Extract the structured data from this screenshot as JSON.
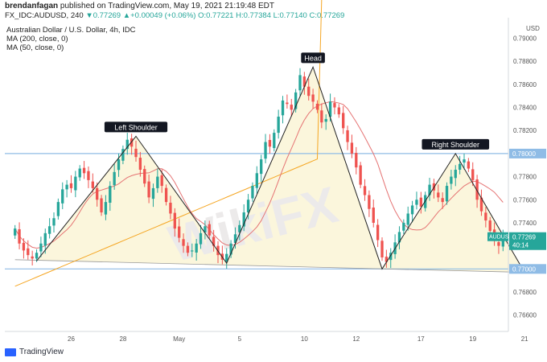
{
  "header": {
    "author": "brendanfagan",
    "published": "published on TradingView.com, May 19, 2021 21:19:48 EDT",
    "symbol_line": "FX_IDC:AUDUSD, 240",
    "change": "▼0.77269 ▲+0.00049 (+0.06%)",
    "open": "O:0.77221",
    "high": "H:0.77384",
    "low": "L:0.77140",
    "close": "C:0.77269"
  },
  "legend": {
    "title": "Australian Dollar / U.S. Dollar, 4h, IDC",
    "ma200": "MA (200, close, 0)",
    "ma50": "MA (50, close, 0)"
  },
  "footer": {
    "brand": "TradingView"
  },
  "watermark": "WikiFX",
  "colors": {
    "up": "#26a69a",
    "down": "#ef5350",
    "ma200": "#f5a623",
    "ma50": "#e57373",
    "neckline": "#8fbce6",
    "shade": "#fbf6dc",
    "pattern": "#222222"
  },
  "chart_data": {
    "type": "candlestick",
    "currency": "USD",
    "price_label": "AUDUSD",
    "last_price": 0.77269,
    "countdown": "40:14",
    "ylim": [
      0.765,
      0.7915
    ],
    "y_ticks": [
      "0.79000",
      "0.78800",
      "0.78600",
      "0.78400",
      "0.78200",
      "0.78000",
      "0.77800",
      "0.77600",
      "0.77400",
      "0.77200",
      "0.77000",
      "0.76800",
      "0.76600"
    ],
    "x_ticks": [
      {
        "label": "26",
        "index": 13
      },
      {
        "label": "28",
        "index": 25
      },
      {
        "label": "May",
        "index": 38
      },
      {
        "label": "5",
        "index": 52
      },
      {
        "label": "10",
        "index": 67
      },
      {
        "label": "12",
        "index": 79
      },
      {
        "label": "17",
        "index": 94
      },
      {
        "label": "19",
        "index": 106
      },
      {
        "label": "21",
        "index": 118
      }
    ],
    "horizontal_levels": [
      {
        "price": 0.78,
        "label": "0.78000"
      },
      {
        "price": 0.77,
        "label": "0.77000"
      }
    ],
    "annotations": [
      {
        "text": "Left Shoulder",
        "index": 28,
        "price": 0.7815
      },
      {
        "text": "Head",
        "index": 69,
        "price": 0.7875
      },
      {
        "text": "Right Shoulder",
        "index": 102,
        "price": 0.78
      }
    ],
    "pattern_path": [
      {
        "index": 5,
        "price": 0.7707
      },
      {
        "index": 28,
        "price": 0.7815
      },
      {
        "index": 49,
        "price": 0.7705
      },
      {
        "index": 69,
        "price": 0.7875
      },
      {
        "index": 85,
        "price": 0.77
      },
      {
        "index": 102,
        "price": 0.78
      },
      {
        "index": 118,
        "price": 0.7697
      }
    ],
    "neckline": [
      {
        "index": 0,
        "price": 0.7708
      },
      {
        "index": 118,
        "price": 0.7697
      }
    ],
    "closes": [
      0.7735,
      0.7722,
      0.7716,
      0.7712,
      0.7709,
      0.7714,
      0.7722,
      0.7731,
      0.7737,
      0.7744,
      0.7758,
      0.7769,
      0.7773,
      0.777,
      0.778,
      0.7787,
      0.7783,
      0.7777,
      0.777,
      0.776,
      0.7749,
      0.7758,
      0.7772,
      0.7784,
      0.7795,
      0.7804,
      0.7812,
      0.7806,
      0.7797,
      0.7786,
      0.7774,
      0.7762,
      0.777,
      0.778,
      0.7772,
      0.7758,
      0.7748,
      0.7735,
      0.7727,
      0.772,
      0.7714,
      0.7716,
      0.7722,
      0.7731,
      0.7737,
      0.7729,
      0.772,
      0.7712,
      0.7708,
      0.7713,
      0.7722,
      0.773,
      0.7738,
      0.7749,
      0.776,
      0.7772,
      0.7783,
      0.7795,
      0.781,
      0.7806,
      0.7818,
      0.7832,
      0.7846,
      0.7843,
      0.7838,
      0.7853,
      0.7868,
      0.7858,
      0.785,
      0.7845,
      0.7838,
      0.7827,
      0.783,
      0.7845,
      0.784,
      0.7834,
      0.7822,
      0.781,
      0.78,
      0.7788,
      0.7773,
      0.7764,
      0.7752,
      0.774,
      0.7725,
      0.771,
      0.7706,
      0.7714,
      0.7723,
      0.7732,
      0.774,
      0.7748,
      0.7755,
      0.776,
      0.7754,
      0.7764,
      0.7773,
      0.7768,
      0.7762,
      0.7758,
      0.7772,
      0.778,
      0.7786,
      0.7791,
      0.7795,
      0.7787,
      0.7777,
      0.776,
      0.775,
      0.7742,
      0.7733,
      0.7725,
      0.772,
      0.7727
    ]
  }
}
